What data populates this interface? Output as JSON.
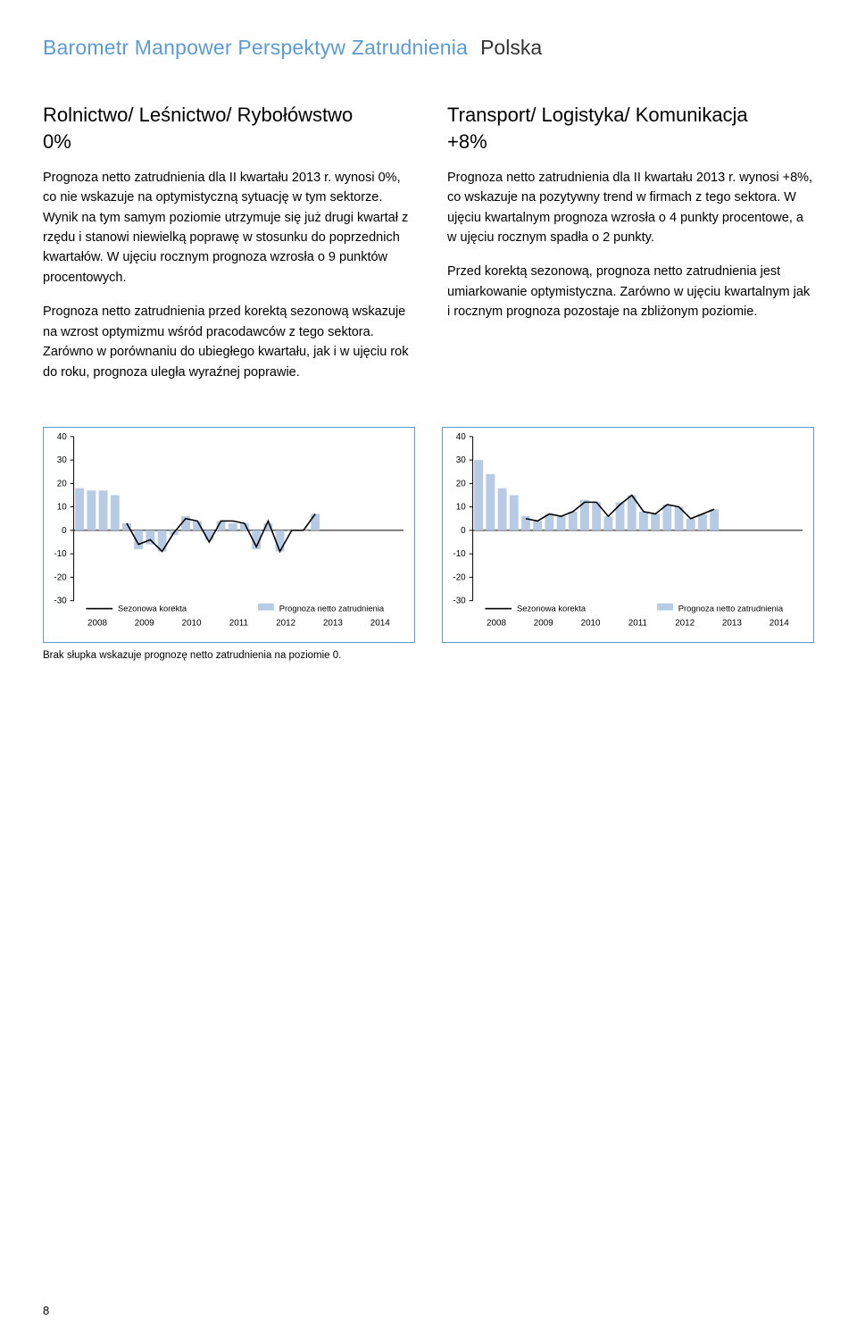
{
  "header": {
    "title": "Barometr Manpower Perspektyw Zatrudnienia",
    "country": "Polska"
  },
  "left": {
    "title": "Rolnictwo/ Leśnictwo/ Rybołówstwo",
    "value": "0%",
    "p1": "Prognoza netto zatrudnienia dla II kwartału 2013 r. wynosi 0%, co nie wskazuje na optymistyczną sytuację w tym sektorze. Wynik na tym samym poziomie utrzymuje się już drugi kwartał z rzędu i stanowi niewielką poprawę w stosunku do poprzednich kwartałów. W ujęciu rocznym prognoza wzrosła o 9 punktów procentowych.",
    "p2": "Prognoza netto zatrudnienia przed korektą sezonową wskazuje na wzrost optymizmu wśród pracodawców z tego sektora. Zarówno w porównaniu do ubiegłego kwartału, jak i w ujęciu rok do roku, prognoza uległa wyraźnej poprawie."
  },
  "right": {
    "title": "Transport/ Logistyka/ Komunikacja",
    "value": "+8%",
    "p1": "Prognoza netto zatrudnienia dla II kwartału 2013 r. wynosi +8%, co wskazuje na pozytywny trend w firmach z tego sektora. W ujęciu kwartalnym prognoza wzrosła o 4 punkty procentowe, a w ujęciu rocznym spadła o 2 punkty.",
    "p2": "Przed korektą sezonową, prognoza netto zatrudnienia jest umiarkowanie optymistyczna. Zarówno w ujęciu kwartalnym jak i rocznym prognoza pozostaje na zbliżonym poziomie."
  },
  "footnote": "Brak słupka wskazuje prognozę netto zatrudnienia na poziomie 0.",
  "pageNumber": "8",
  "chartCommon": {
    "yticks": [
      40,
      30,
      20,
      10,
      0,
      -10,
      -20,
      -30
    ],
    "ylim": [
      -30,
      40
    ],
    "xticks": [
      "2008",
      "2009",
      "2010",
      "2011",
      "2012",
      "2013",
      "2014"
    ],
    "legend_left": "Sezonowa korekta",
    "legend_right": "Prognoza netto zatrudnienia",
    "bar_color": "#b7cce4",
    "line_color": "#000000",
    "border_color": "#5b9bd5",
    "tick_font": 10,
    "legend_font": 9.5
  },
  "chart_left": {
    "bars": [
      18,
      17,
      17,
      15,
      3,
      -8,
      -6,
      -9,
      -2,
      6,
      4,
      -4,
      4,
      3,
      3,
      -8,
      3,
      -9,
      0,
      0,
      7
    ],
    "line": [
      null,
      null,
      null,
      null,
      3,
      -6,
      -4,
      -9,
      -1,
      5,
      4,
      -5,
      4,
      4,
      3,
      -7,
      4,
      -9,
      0,
      0,
      7
    ]
  },
  "chart_right": {
    "bars": [
      30,
      24,
      18,
      15,
      6,
      4,
      7,
      6,
      8,
      13,
      12,
      6,
      12,
      15,
      8,
      7,
      11,
      10,
      5,
      7,
      9
    ],
    "line": [
      null,
      null,
      null,
      null,
      5,
      4,
      7,
      6,
      8,
      12,
      12,
      6,
      11,
      15,
      8,
      7,
      11,
      10,
      5,
      7,
      9
    ]
  }
}
